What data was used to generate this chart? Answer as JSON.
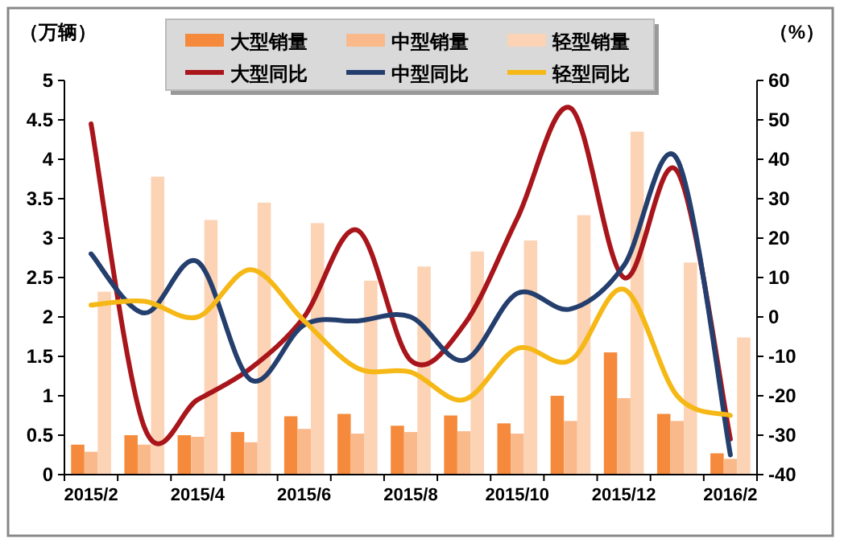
{
  "chart_data": {
    "type": "bar",
    "ylabel": "（万辆）",
    "y2label": "（%）",
    "categories": [
      "2015/2",
      null,
      "2015/4",
      null,
      "2015/6",
      null,
      "2015/8",
      null,
      "2015/10",
      null,
      "2015/12",
      null,
      "2016/2"
    ],
    "series": [
      {
        "name": "大型销量",
        "color": "#f58a3c",
        "values": [
          0.38,
          0.5,
          0.5,
          0.54,
          0.74,
          0.77,
          0.62,
          0.75,
          0.65,
          1.0,
          1.55,
          0.77,
          0.27
        ]
      },
      {
        "name": "中型销量",
        "color": "#f9b98a",
        "values": [
          0.29,
          0.38,
          0.48,
          0.41,
          0.58,
          0.52,
          0.54,
          0.55,
          0.52,
          0.68,
          0.97,
          0.68,
          0.2
        ]
      },
      {
        "name": "轻型销量",
        "color": "#fcd3b4",
        "values": [
          2.32,
          3.78,
          3.23,
          3.45,
          3.19,
          2.46,
          2.64,
          2.83,
          2.97,
          3.29,
          4.35,
          2.69,
          1.74
        ]
      },
      {
        "name": "大型同比",
        "type": "line",
        "axis": "y2",
        "color": "#a8151b",
        "values": [
          49,
          -28,
          -21,
          -13,
          0,
          22,
          -11,
          -2,
          25,
          53,
          10,
          37,
          -31
        ]
      },
      {
        "name": "中型同比",
        "type": "line",
        "axis": "y2",
        "color": "#243f6e",
        "values": [
          16,
          1,
          14,
          -16,
          -2,
          -1,
          0,
          -11,
          6,
          2,
          13,
          40,
          -35
        ]
      },
      {
        "name": "轻型同比",
        "type": "line",
        "axis": "y2",
        "color": "#f5b816",
        "values": [
          3,
          4,
          0,
          12,
          -1,
          -13,
          -14,
          -21,
          -8,
          -11,
          7,
          -20,
          -25
        ]
      }
    ],
    "ylim": [
      0,
      5
    ],
    "yticks": [
      0,
      0.5,
      1,
      1.5,
      2,
      2.5,
      3,
      3.5,
      4,
      4.5,
      5
    ],
    "y2lim": [
      -40,
      60
    ],
    "y2ticks": [
      -40,
      -30,
      -20,
      -10,
      0,
      10,
      20,
      30,
      40,
      50,
      60
    ],
    "grid": false,
    "legend": "top",
    "marker": "none",
    "line_style": "solid"
  }
}
